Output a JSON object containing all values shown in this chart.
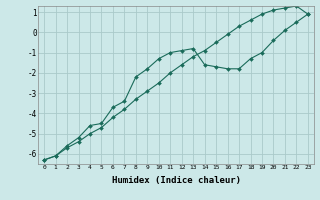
{
  "xlabel": "Humidex (Indice chaleur)",
  "ylabel": "",
  "background_color": "#cce8e8",
  "grid_color": "#aacaca",
  "line_color": "#1a6b5a",
  "xlim": [
    -0.5,
    23.5
  ],
  "ylim": [
    -6.5,
    1.3
  ],
  "yticks": [
    1,
    0,
    -1,
    -2,
    -3,
    -4,
    -5,
    -6
  ],
  "xticks": [
    0,
    1,
    2,
    3,
    4,
    5,
    6,
    7,
    8,
    9,
    10,
    11,
    12,
    13,
    14,
    15,
    16,
    17,
    18,
    19,
    20,
    21,
    22,
    23
  ],
  "line1_x": [
    0,
    1,
    2,
    3,
    4,
    5,
    6,
    7,
    8,
    9,
    10,
    11,
    12,
    13,
    14,
    15,
    16,
    17,
    18,
    19,
    20,
    21,
    22,
    23
  ],
  "line1_y": [
    -6.3,
    -6.1,
    -5.6,
    -5.2,
    -4.6,
    -4.5,
    -3.7,
    -3.4,
    -2.2,
    -1.8,
    -1.3,
    -1.0,
    -0.9,
    -0.8,
    -1.6,
    -1.7,
    -1.8,
    -1.8,
    -1.3,
    -1.0,
    -0.4,
    0.1,
    0.5,
    0.9
  ],
  "line2_x": [
    0,
    1,
    2,
    3,
    4,
    5,
    6,
    7,
    8,
    9,
    10,
    11,
    12,
    13,
    14,
    15,
    16,
    17,
    18,
    19,
    20,
    21,
    22,
    23
  ],
  "line2_y": [
    -6.3,
    -6.1,
    -5.7,
    -5.4,
    -5.0,
    -4.7,
    -4.2,
    -3.8,
    -3.3,
    -2.9,
    -2.5,
    -2.0,
    -1.6,
    -1.2,
    -0.9,
    -0.5,
    -0.1,
    0.3,
    0.6,
    0.9,
    1.1,
    1.2,
    1.3,
    0.9
  ]
}
